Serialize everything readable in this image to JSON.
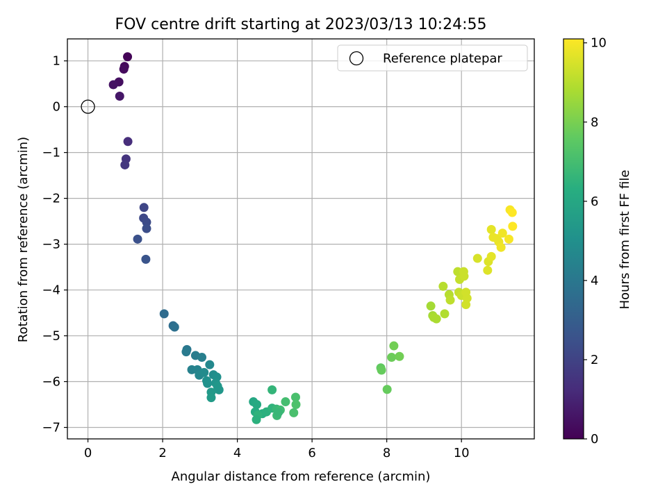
{
  "chart_data": {
    "type": "scatter",
    "title": "FOV centre drift starting at 2023/03/13 10:24:55",
    "xlabel": "Angular distance from reference (arcmin)",
    "ylabel": "Rotation from reference (arcmin)",
    "xlim": [
      -0.55,
      11.95
    ],
    "ylim": [
      -7.25,
      1.48
    ],
    "xticks": [
      0,
      2,
      4,
      6,
      8,
      10
    ],
    "xtick_labels": [
      "0",
      "2",
      "4",
      "6",
      "8",
      "10"
    ],
    "yticks": [
      1,
      0,
      -1,
      -2,
      -3,
      -4,
      -5,
      -6,
      -7
    ],
    "ytick_labels": [
      "1",
      "0",
      "−1",
      "−2",
      "−3",
      "−4",
      "−5",
      "−6",
      "−7"
    ],
    "grid": true,
    "legend": {
      "position": "top-right",
      "entries": [
        {
          "label": "Reference platepar",
          "marker": "open-circle",
          "x": 0,
          "y": 0
        }
      ]
    },
    "colorbar": {
      "label": "Hours from first FF file",
      "min": 0,
      "max": 10.1,
      "ticks": [
        0,
        2,
        4,
        6,
        8,
        10
      ],
      "tick_labels": [
        "0",
        "2",
        "4",
        "6",
        "8",
        "10"
      ],
      "colormap": "viridis"
    },
    "series": [
      {
        "columns": [
          "x",
          "y",
          "hours"
        ],
        "points": [
          [
            1.06,
            1.09,
            0.1
          ],
          [
            0.98,
            0.88,
            0.2
          ],
          [
            0.96,
            0.82,
            0.3
          ],
          [
            0.83,
            0.54,
            0.4
          ],
          [
            0.68,
            0.48,
            0.5
          ],
          [
            0.85,
            0.23,
            0.6
          ],
          [
            1.07,
            -0.76,
            1.3
          ],
          [
            1.02,
            -1.14,
            1.5
          ],
          [
            0.99,
            -1.27,
            1.6
          ],
          [
            1.5,
            -2.2,
            2.1
          ],
          [
            1.49,
            -2.43,
            2.2
          ],
          [
            1.57,
            -2.52,
            2.3
          ],
          [
            1.57,
            -2.66,
            2.4
          ],
          [
            1.33,
            -2.89,
            2.5
          ],
          [
            1.55,
            -3.33,
            2.6
          ],
          [
            2.04,
            -4.52,
            3.5
          ],
          [
            2.28,
            -4.78,
            3.6
          ],
          [
            2.32,
            -4.81,
            3.7
          ],
          [
            2.65,
            -5.3,
            4.0
          ],
          [
            2.63,
            -5.35,
            4.1
          ],
          [
            2.88,
            -5.43,
            4.2
          ],
          [
            3.05,
            -5.47,
            4.3
          ],
          [
            2.78,
            -5.74,
            4.4
          ],
          [
            2.93,
            -5.74,
            4.5
          ],
          [
            2.98,
            -5.86,
            4.6
          ],
          [
            3.26,
            -5.63,
            4.7
          ],
          [
            3.11,
            -5.8,
            4.8
          ],
          [
            3.36,
            -5.85,
            4.9
          ],
          [
            3.45,
            -5.9,
            5.0
          ],
          [
            3.18,
            -5.98,
            5.0
          ],
          [
            3.2,
            -6.04,
            5.1
          ],
          [
            3.42,
            -6.03,
            5.2
          ],
          [
            3.47,
            -6.1,
            5.3
          ],
          [
            3.51,
            -6.18,
            5.3
          ],
          [
            3.3,
            -6.23,
            5.4
          ],
          [
            3.3,
            -6.35,
            5.5
          ],
          [
            4.43,
            -6.44,
            6.0
          ],
          [
            4.52,
            -6.5,
            6.1
          ],
          [
            4.48,
            -6.66,
            6.2
          ],
          [
            4.67,
            -6.7,
            6.3
          ],
          [
            4.78,
            -6.66,
            6.4
          ],
          [
            4.55,
            -6.73,
            6.5
          ],
          [
            4.51,
            -6.83,
            6.4
          ],
          [
            4.93,
            -6.58,
            6.5
          ],
          [
            4.93,
            -6.18,
            6.6
          ],
          [
            5.05,
            -6.6,
            6.7
          ],
          [
            5.06,
            -6.74,
            6.8
          ],
          [
            5.15,
            -6.62,
            6.9
          ],
          [
            5.1,
            -6.67,
            6.7
          ],
          [
            5.29,
            -6.44,
            7.0
          ],
          [
            5.56,
            -6.34,
            7.1
          ],
          [
            5.57,
            -6.5,
            7.2
          ],
          [
            5.51,
            -6.68,
            7.1
          ],
          [
            7.84,
            -5.7,
            7.6
          ],
          [
            7.86,
            -5.75,
            7.7
          ],
          [
            8.01,
            -6.17,
            7.7
          ],
          [
            8.13,
            -5.47,
            7.8
          ],
          [
            8.19,
            -5.22,
            7.9
          ],
          [
            8.34,
            -5.45,
            7.9
          ],
          [
            9.18,
            -4.35,
            8.7
          ],
          [
            9.23,
            -4.56,
            8.7
          ],
          [
            9.26,
            -4.6,
            8.8
          ],
          [
            9.33,
            -4.63,
            8.8
          ],
          [
            9.55,
            -4.52,
            8.9
          ],
          [
            9.51,
            -3.92,
            9.0
          ],
          [
            9.67,
            -4.1,
            9.0
          ],
          [
            9.7,
            -4.22,
            9.1
          ],
          [
            9.9,
            -3.6,
            9.1
          ],
          [
            9.95,
            -3.77,
            9.2
          ],
          [
            9.93,
            -4.05,
            9.2
          ],
          [
            10.06,
            -3.6,
            9.3
          ],
          [
            10.07,
            -3.7,
            9.3
          ],
          [
            10.0,
            -4.12,
            9.3
          ],
          [
            10.12,
            -4.05,
            9.4
          ],
          [
            10.15,
            -4.18,
            9.4
          ],
          [
            10.12,
            -4.32,
            9.4
          ],
          [
            10.43,
            -3.31,
            9.5
          ],
          [
            10.7,
            -3.57,
            9.6
          ],
          [
            10.72,
            -3.38,
            9.6
          ],
          [
            10.8,
            -3.27,
            9.7
          ],
          [
            10.8,
            -2.68,
            9.7
          ],
          [
            10.85,
            -2.85,
            9.8
          ],
          [
            10.95,
            -2.88,
            9.8
          ],
          [
            11.0,
            -2.95,
            9.8
          ],
          [
            11.06,
            -3.07,
            9.9
          ],
          [
            11.1,
            -2.76,
            9.9
          ],
          [
            11.27,
            -2.89,
            10.0
          ],
          [
            11.3,
            -2.25,
            10.0
          ],
          [
            11.36,
            -2.31,
            10.1
          ],
          [
            11.37,
            -2.61,
            10.1
          ]
        ]
      }
    ]
  }
}
